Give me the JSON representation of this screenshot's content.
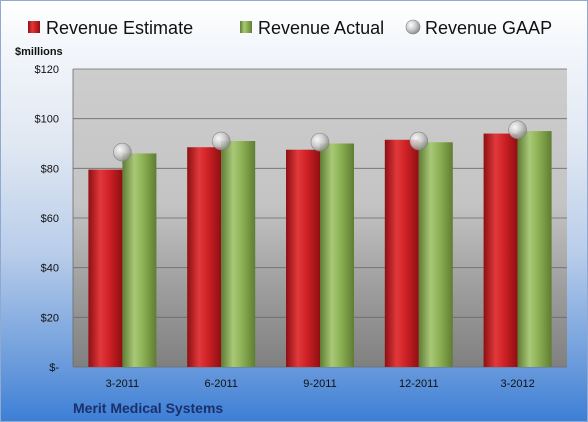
{
  "chart_data": {
    "type": "bar",
    "ylabel": "$millions",
    "company": "Merit Medical Systems",
    "categories": [
      "3-2011",
      "6-2011",
      "9-2011",
      "12-2011",
      "3-2012"
    ],
    "series": [
      {
        "name": "Revenue Estimate",
        "kind": "bar",
        "color": "#cc1f24",
        "values": [
          79.5,
          88.5,
          87.5,
          91.5,
          94.0
        ]
      },
      {
        "name": "Revenue Actual",
        "kind": "bar",
        "color": "#8db255",
        "values": [
          86.0,
          91.0,
          90.0,
          90.5,
          95.0
        ]
      },
      {
        "name": "Revenue GAAP",
        "kind": "marker",
        "color": "#c9c9c9",
        "values": [
          86.5,
          91.0,
          90.5,
          91.0,
          95.5
        ]
      }
    ],
    "ylim": [
      0,
      120
    ],
    "yticks": [
      0,
      20,
      40,
      60,
      80,
      100,
      120
    ],
    "ytick_labels": [
      "$-",
      "$20",
      "$40",
      "$60",
      "$80",
      "$100",
      "$120"
    ],
    "grid": true,
    "legend": "top"
  }
}
